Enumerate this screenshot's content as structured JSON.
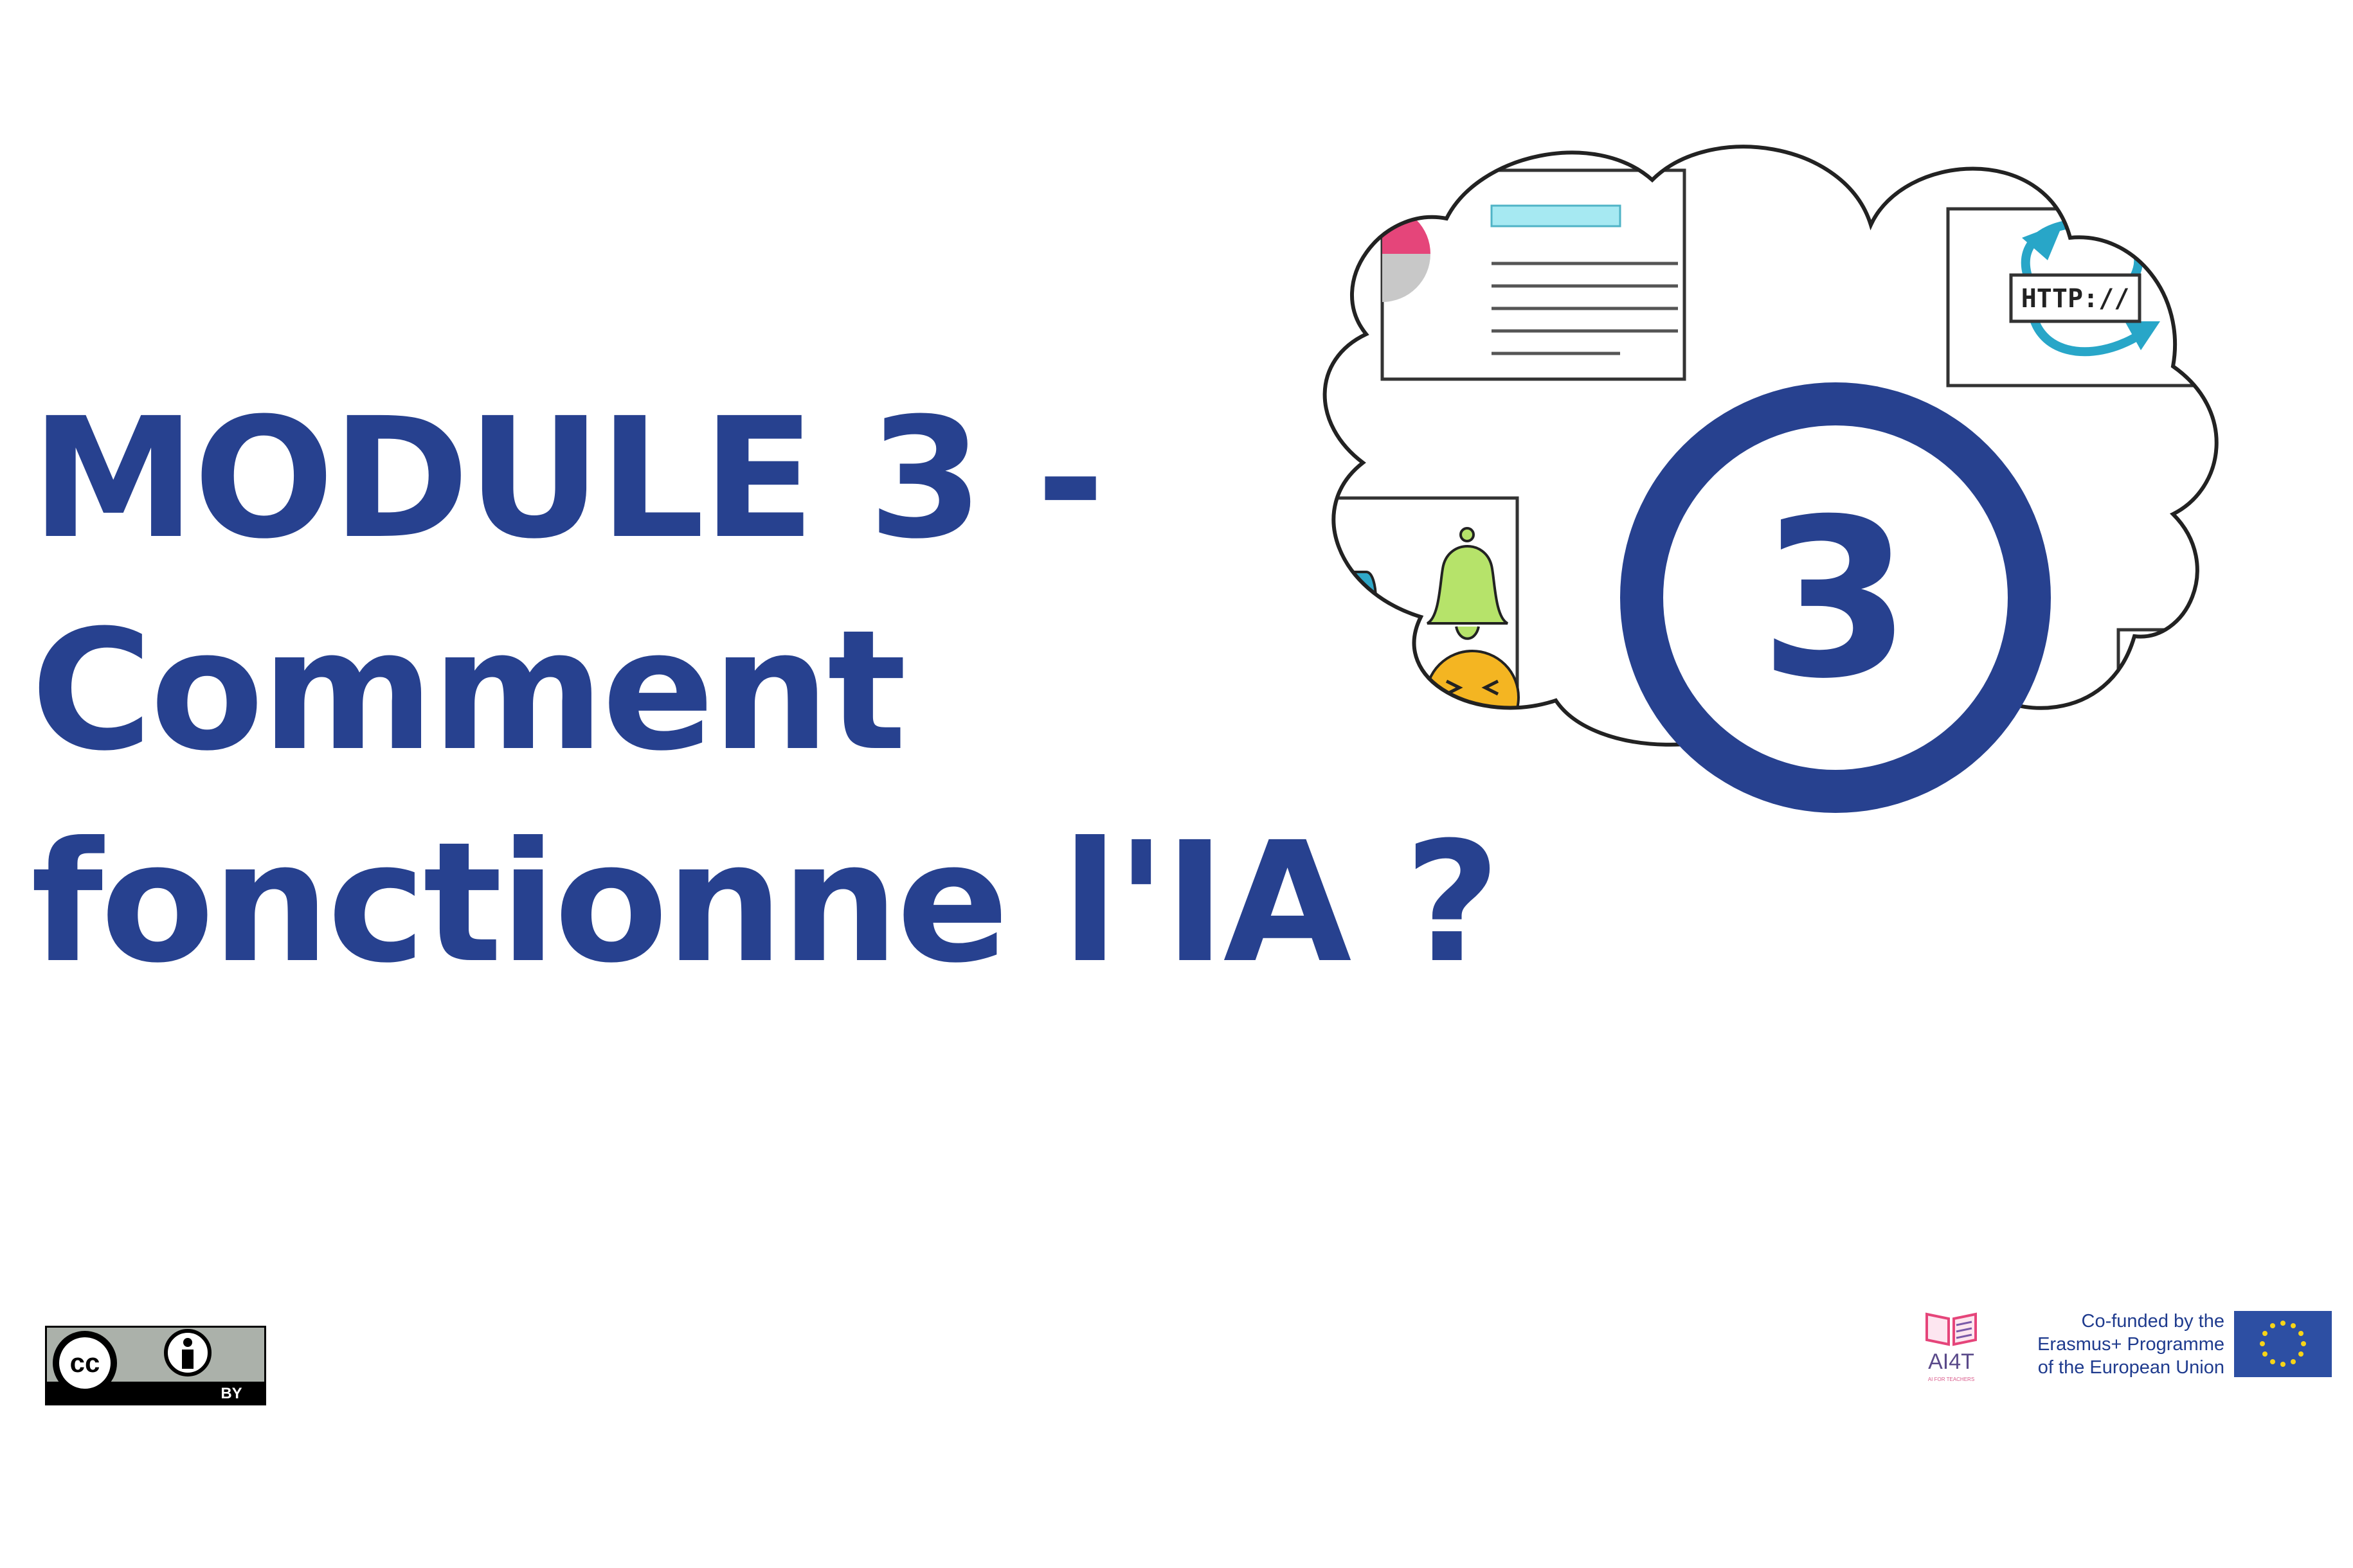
{
  "title": {
    "line1": "MODULE 3 -",
    "line2": "Comment",
    "line3": "fonctionne l'IA ?"
  },
  "illustration": {
    "module_number": "3",
    "http_label": "HTTP://"
  },
  "license": {
    "cc_label": "cc",
    "by_label": "BY"
  },
  "ai4t": {
    "name": "AI4T",
    "subtitle": "AI FOR TEACHERS"
  },
  "funding": {
    "line1": "Co-funded by the",
    "line2": "Erasmus+ Programme",
    "line3": "of the European Union"
  },
  "colors": {
    "primary": "#27418f",
    "pink": "#e5457a",
    "teal": "#28a6c8",
    "eu_blue": "#2d4fa3",
    "eu_star": "#f7d417"
  }
}
